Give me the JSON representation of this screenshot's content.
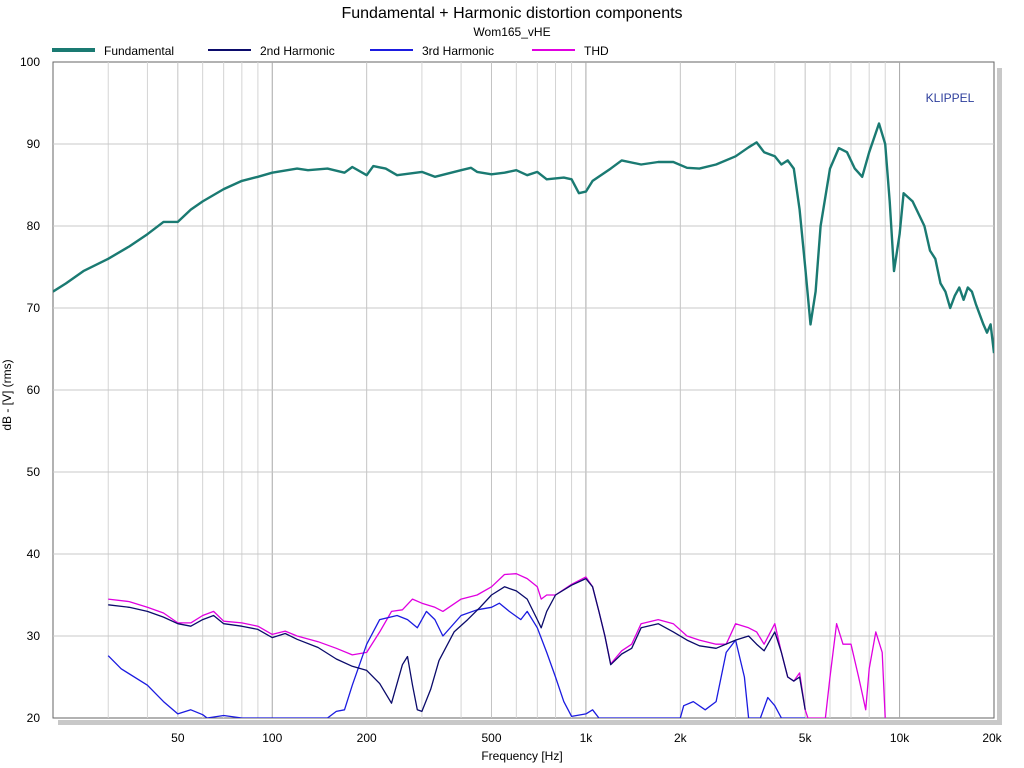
{
  "chart_data": {
    "type": "line",
    "title": "Fundamental + Harmonic distortion components",
    "subtitle": "Wom165_vHE",
    "xlabel": "Frequency [Hz]",
    "ylabel": "dB - [V]  (rms)",
    "watermark": "KLIPPEL",
    "x_scale": "log",
    "xlim": [
      20,
      20000
    ],
    "ylim": [
      20,
      100
    ],
    "grid": true,
    "legend_position": "top",
    "x_ticks": [
      {
        "value": 50,
        "label": "50"
      },
      {
        "value": 100,
        "label": "100"
      },
      {
        "value": 200,
        "label": "200"
      },
      {
        "value": 500,
        "label": "500"
      },
      {
        "value": 1000,
        "label": "1k"
      },
      {
        "value": 2000,
        "label": "2k"
      },
      {
        "value": 5000,
        "label": "5k"
      },
      {
        "value": 10000,
        "label": "10k"
      },
      {
        "value": 20000,
        "label": "20k"
      }
    ],
    "y_ticks": [
      20,
      30,
      40,
      50,
      60,
      70,
      80,
      90,
      100
    ],
    "series": [
      {
        "name": "Fundamental",
        "color": "#1a7a72",
        "points": [
          [
            20,
            72
          ],
          [
            22,
            73
          ],
          [
            25,
            74.5
          ],
          [
            30,
            76
          ],
          [
            35,
            77.5
          ],
          [
            40,
            79
          ],
          [
            45,
            80.5
          ],
          [
            50,
            80.5
          ],
          [
            55,
            82
          ],
          [
            60,
            83
          ],
          [
            70,
            84.5
          ],
          [
            80,
            85.5
          ],
          [
            90,
            86
          ],
          [
            100,
            86.5
          ],
          [
            120,
            87
          ],
          [
            130,
            86.8
          ],
          [
            150,
            87
          ],
          [
            170,
            86.5
          ],
          [
            180,
            87.2
          ],
          [
            200,
            86.2
          ],
          [
            210,
            87.3
          ],
          [
            230,
            87
          ],
          [
            250,
            86.2
          ],
          [
            300,
            86.6
          ],
          [
            330,
            86
          ],
          [
            400,
            86.8
          ],
          [
            430,
            87.1
          ],
          [
            450,
            86.6
          ],
          [
            500,
            86.3
          ],
          [
            550,
            86.5
          ],
          [
            600,
            86.8
          ],
          [
            650,
            86.2
          ],
          [
            700,
            86.6
          ],
          [
            750,
            85.7
          ],
          [
            850,
            85.9
          ],
          [
            900,
            85.7
          ],
          [
            950,
            84
          ],
          [
            1000,
            84.2
          ],
          [
            1050,
            85.5
          ],
          [
            1200,
            87
          ],
          [
            1300,
            88
          ],
          [
            1500,
            87.5
          ],
          [
            1700,
            87.8
          ],
          [
            1900,
            87.8
          ],
          [
            2100,
            87.1
          ],
          [
            2300,
            87
          ],
          [
            2600,
            87.5
          ],
          [
            3000,
            88.5
          ],
          [
            3300,
            89.6
          ],
          [
            3500,
            90.2
          ],
          [
            3700,
            89
          ],
          [
            4000,
            88.5
          ],
          [
            4200,
            87.5
          ],
          [
            4400,
            88
          ],
          [
            4600,
            87
          ],
          [
            4800,
            82
          ],
          [
            5000,
            75
          ],
          [
            5200,
            68
          ],
          [
            5400,
            72
          ],
          [
            5600,
            80
          ],
          [
            6000,
            87
          ],
          [
            6400,
            89.5
          ],
          [
            6800,
            89
          ],
          [
            7200,
            87
          ],
          [
            7600,
            86
          ],
          [
            8000,
            89
          ],
          [
            8600,
            92.5
          ],
          [
            9000,
            90
          ],
          [
            9300,
            83
          ],
          [
            9600,
            74.5
          ],
          [
            10000,
            79
          ],
          [
            10300,
            84
          ],
          [
            11000,
            83
          ],
          [
            12000,
            80
          ],
          [
            12500,
            77
          ],
          [
            13000,
            76
          ],
          [
            13500,
            73
          ],
          [
            14000,
            72
          ],
          [
            14500,
            70
          ],
          [
            15000,
            71.5
          ],
          [
            15500,
            72.5
          ],
          [
            16000,
            71
          ],
          [
            16500,
            72.5
          ],
          [
            17000,
            72
          ],
          [
            17500,
            70.5
          ],
          [
            18500,
            68
          ],
          [
            19000,
            67
          ],
          [
            19500,
            68
          ],
          [
            20000,
            64.5
          ]
        ]
      },
      {
        "name": "2nd Harmonic",
        "color": "#0b0b6b",
        "points": [
          [
            30,
            33.8
          ],
          [
            35,
            33.5
          ],
          [
            40,
            33
          ],
          [
            45,
            32.3
          ],
          [
            50,
            31.5
          ],
          [
            55,
            31.2
          ],
          [
            60,
            32
          ],
          [
            65,
            32.5
          ],
          [
            70,
            31.5
          ],
          [
            80,
            31.2
          ],
          [
            90,
            30.8
          ],
          [
            100,
            29.8
          ],
          [
            110,
            30.3
          ],
          [
            120,
            29.6
          ],
          [
            140,
            28.6
          ],
          [
            160,
            27.2
          ],
          [
            180,
            26.3
          ],
          [
            200,
            25.8
          ],
          [
            220,
            24.2
          ],
          [
            240,
            21.8
          ],
          [
            260,
            26.5
          ],
          [
            270,
            27.5
          ],
          [
            280,
            24
          ],
          [
            290,
            21
          ],
          [
            300,
            20.8
          ],
          [
            320,
            23.5
          ],
          [
            340,
            27
          ],
          [
            380,
            30.5
          ],
          [
            420,
            32
          ],
          [
            460,
            33.5
          ],
          [
            500,
            35
          ],
          [
            550,
            36
          ],
          [
            600,
            35.5
          ],
          [
            650,
            34.5
          ],
          [
            700,
            32
          ],
          [
            720,
            31
          ],
          [
            750,
            33
          ],
          [
            800,
            35
          ],
          [
            900,
            36.2
          ],
          [
            1000,
            37
          ],
          [
            1050,
            36
          ],
          [
            1100,
            33
          ],
          [
            1150,
            30
          ],
          [
            1200,
            26.5
          ],
          [
            1300,
            27.8
          ],
          [
            1400,
            28.5
          ],
          [
            1500,
            31
          ],
          [
            1700,
            31.5
          ],
          [
            1900,
            30.5
          ],
          [
            2100,
            29.5
          ],
          [
            2300,
            28.8
          ],
          [
            2600,
            28.5
          ],
          [
            3000,
            29.5
          ],
          [
            3300,
            30
          ],
          [
            3500,
            29
          ],
          [
            3700,
            28.2
          ],
          [
            4000,
            30.5
          ],
          [
            4200,
            28
          ],
          [
            4400,
            25
          ],
          [
            4600,
            24.5
          ],
          [
            4800,
            25
          ],
          [
            5000,
            21
          ]
        ]
      },
      {
        "name": "3rd Harmonic",
        "color": "#1b1be0",
        "points": [
          [
            30,
            27.6
          ],
          [
            33,
            26
          ],
          [
            40,
            24
          ],
          [
            45,
            22
          ],
          [
            50,
            20.5
          ],
          [
            55,
            21
          ],
          [
            60,
            20.4
          ],
          [
            62,
            20
          ],
          [
            70,
            20.3
          ],
          [
            80,
            20
          ],
          [
            150,
            20
          ],
          [
            160,
            20.8
          ],
          [
            170,
            21
          ],
          [
            180,
            24
          ],
          [
            200,
            29
          ],
          [
            220,
            32
          ],
          [
            250,
            32.5
          ],
          [
            270,
            32
          ],
          [
            290,
            31
          ],
          [
            310,
            33
          ],
          [
            330,
            32
          ],
          [
            350,
            30
          ],
          [
            400,
            32.5
          ],
          [
            450,
            33.2
          ],
          [
            500,
            33.5
          ],
          [
            530,
            34
          ],
          [
            570,
            33
          ],
          [
            620,
            32
          ],
          [
            650,
            33
          ],
          [
            700,
            31
          ],
          [
            750,
            28
          ],
          [
            800,
            25
          ],
          [
            850,
            22
          ],
          [
            900,
            20.2
          ],
          [
            1000,
            20.5
          ],
          [
            1050,
            21
          ],
          [
            1100,
            20
          ],
          [
            2000,
            20
          ],
          [
            2050,
            21.5
          ],
          [
            2200,
            22
          ],
          [
            2400,
            21
          ],
          [
            2600,
            22
          ],
          [
            2800,
            28
          ],
          [
            3000,
            29.5
          ],
          [
            3200,
            25
          ],
          [
            3300,
            20
          ],
          [
            3600,
            20
          ],
          [
            3800,
            22.5
          ],
          [
            4000,
            21.5
          ],
          [
            4200,
            20
          ],
          [
            5000,
            20
          ]
        ]
      },
      {
        "name": "THD",
        "color": "#e000e0",
        "points": [
          [
            30,
            34.5
          ],
          [
            35,
            34.2
          ],
          [
            40,
            33.5
          ],
          [
            45,
            32.8
          ],
          [
            50,
            31.6
          ],
          [
            55,
            31.6
          ],
          [
            60,
            32.5
          ],
          [
            65,
            33
          ],
          [
            70,
            31.8
          ],
          [
            80,
            31.6
          ],
          [
            90,
            31.2
          ],
          [
            100,
            30.2
          ],
          [
            110,
            30.6
          ],
          [
            120,
            30
          ],
          [
            140,
            29.3
          ],
          [
            160,
            28.5
          ],
          [
            180,
            27.7
          ],
          [
            200,
            28
          ],
          [
            220,
            30.5
          ],
          [
            240,
            33
          ],
          [
            260,
            33.2
          ],
          [
            280,
            34.5
          ],
          [
            300,
            34
          ],
          [
            330,
            33.5
          ],
          [
            350,
            33
          ],
          [
            400,
            34.5
          ],
          [
            450,
            35
          ],
          [
            500,
            36
          ],
          [
            550,
            37.5
          ],
          [
            600,
            37.6
          ],
          [
            650,
            37
          ],
          [
            700,
            36
          ],
          [
            720,
            34.5
          ],
          [
            750,
            35
          ],
          [
            800,
            35
          ],
          [
            900,
            36.3
          ],
          [
            1000,
            37.2
          ],
          [
            1050,
            36
          ],
          [
            1100,
            33
          ],
          [
            1150,
            30
          ],
          [
            1200,
            26.6
          ],
          [
            1300,
            28.2
          ],
          [
            1400,
            29
          ],
          [
            1500,
            31.5
          ],
          [
            1700,
            32
          ],
          [
            1900,
            31.5
          ],
          [
            2100,
            30
          ],
          [
            2300,
            29.5
          ],
          [
            2600,
            29
          ],
          [
            2800,
            29
          ],
          [
            3000,
            31.5
          ],
          [
            3300,
            31
          ],
          [
            3500,
            30.5
          ],
          [
            3700,
            29
          ],
          [
            4000,
            31.5
          ],
          [
            4200,
            28
          ],
          [
            4400,
            25
          ],
          [
            4600,
            24.5
          ],
          [
            4800,
            25.5
          ],
          [
            5000,
            21
          ],
          [
            5100,
            20
          ],
          [
            5800,
            20
          ],
          [
            6000,
            25
          ],
          [
            6300,
            31.5
          ],
          [
            6600,
            29
          ],
          [
            7000,
            29
          ],
          [
            7200,
            27
          ],
          [
            7400,
            25
          ],
          [
            7600,
            23
          ],
          [
            7800,
            21
          ],
          [
            8000,
            26
          ],
          [
            8400,
            30.5
          ],
          [
            8800,
            28
          ],
          [
            9000,
            20
          ]
        ]
      }
    ]
  }
}
